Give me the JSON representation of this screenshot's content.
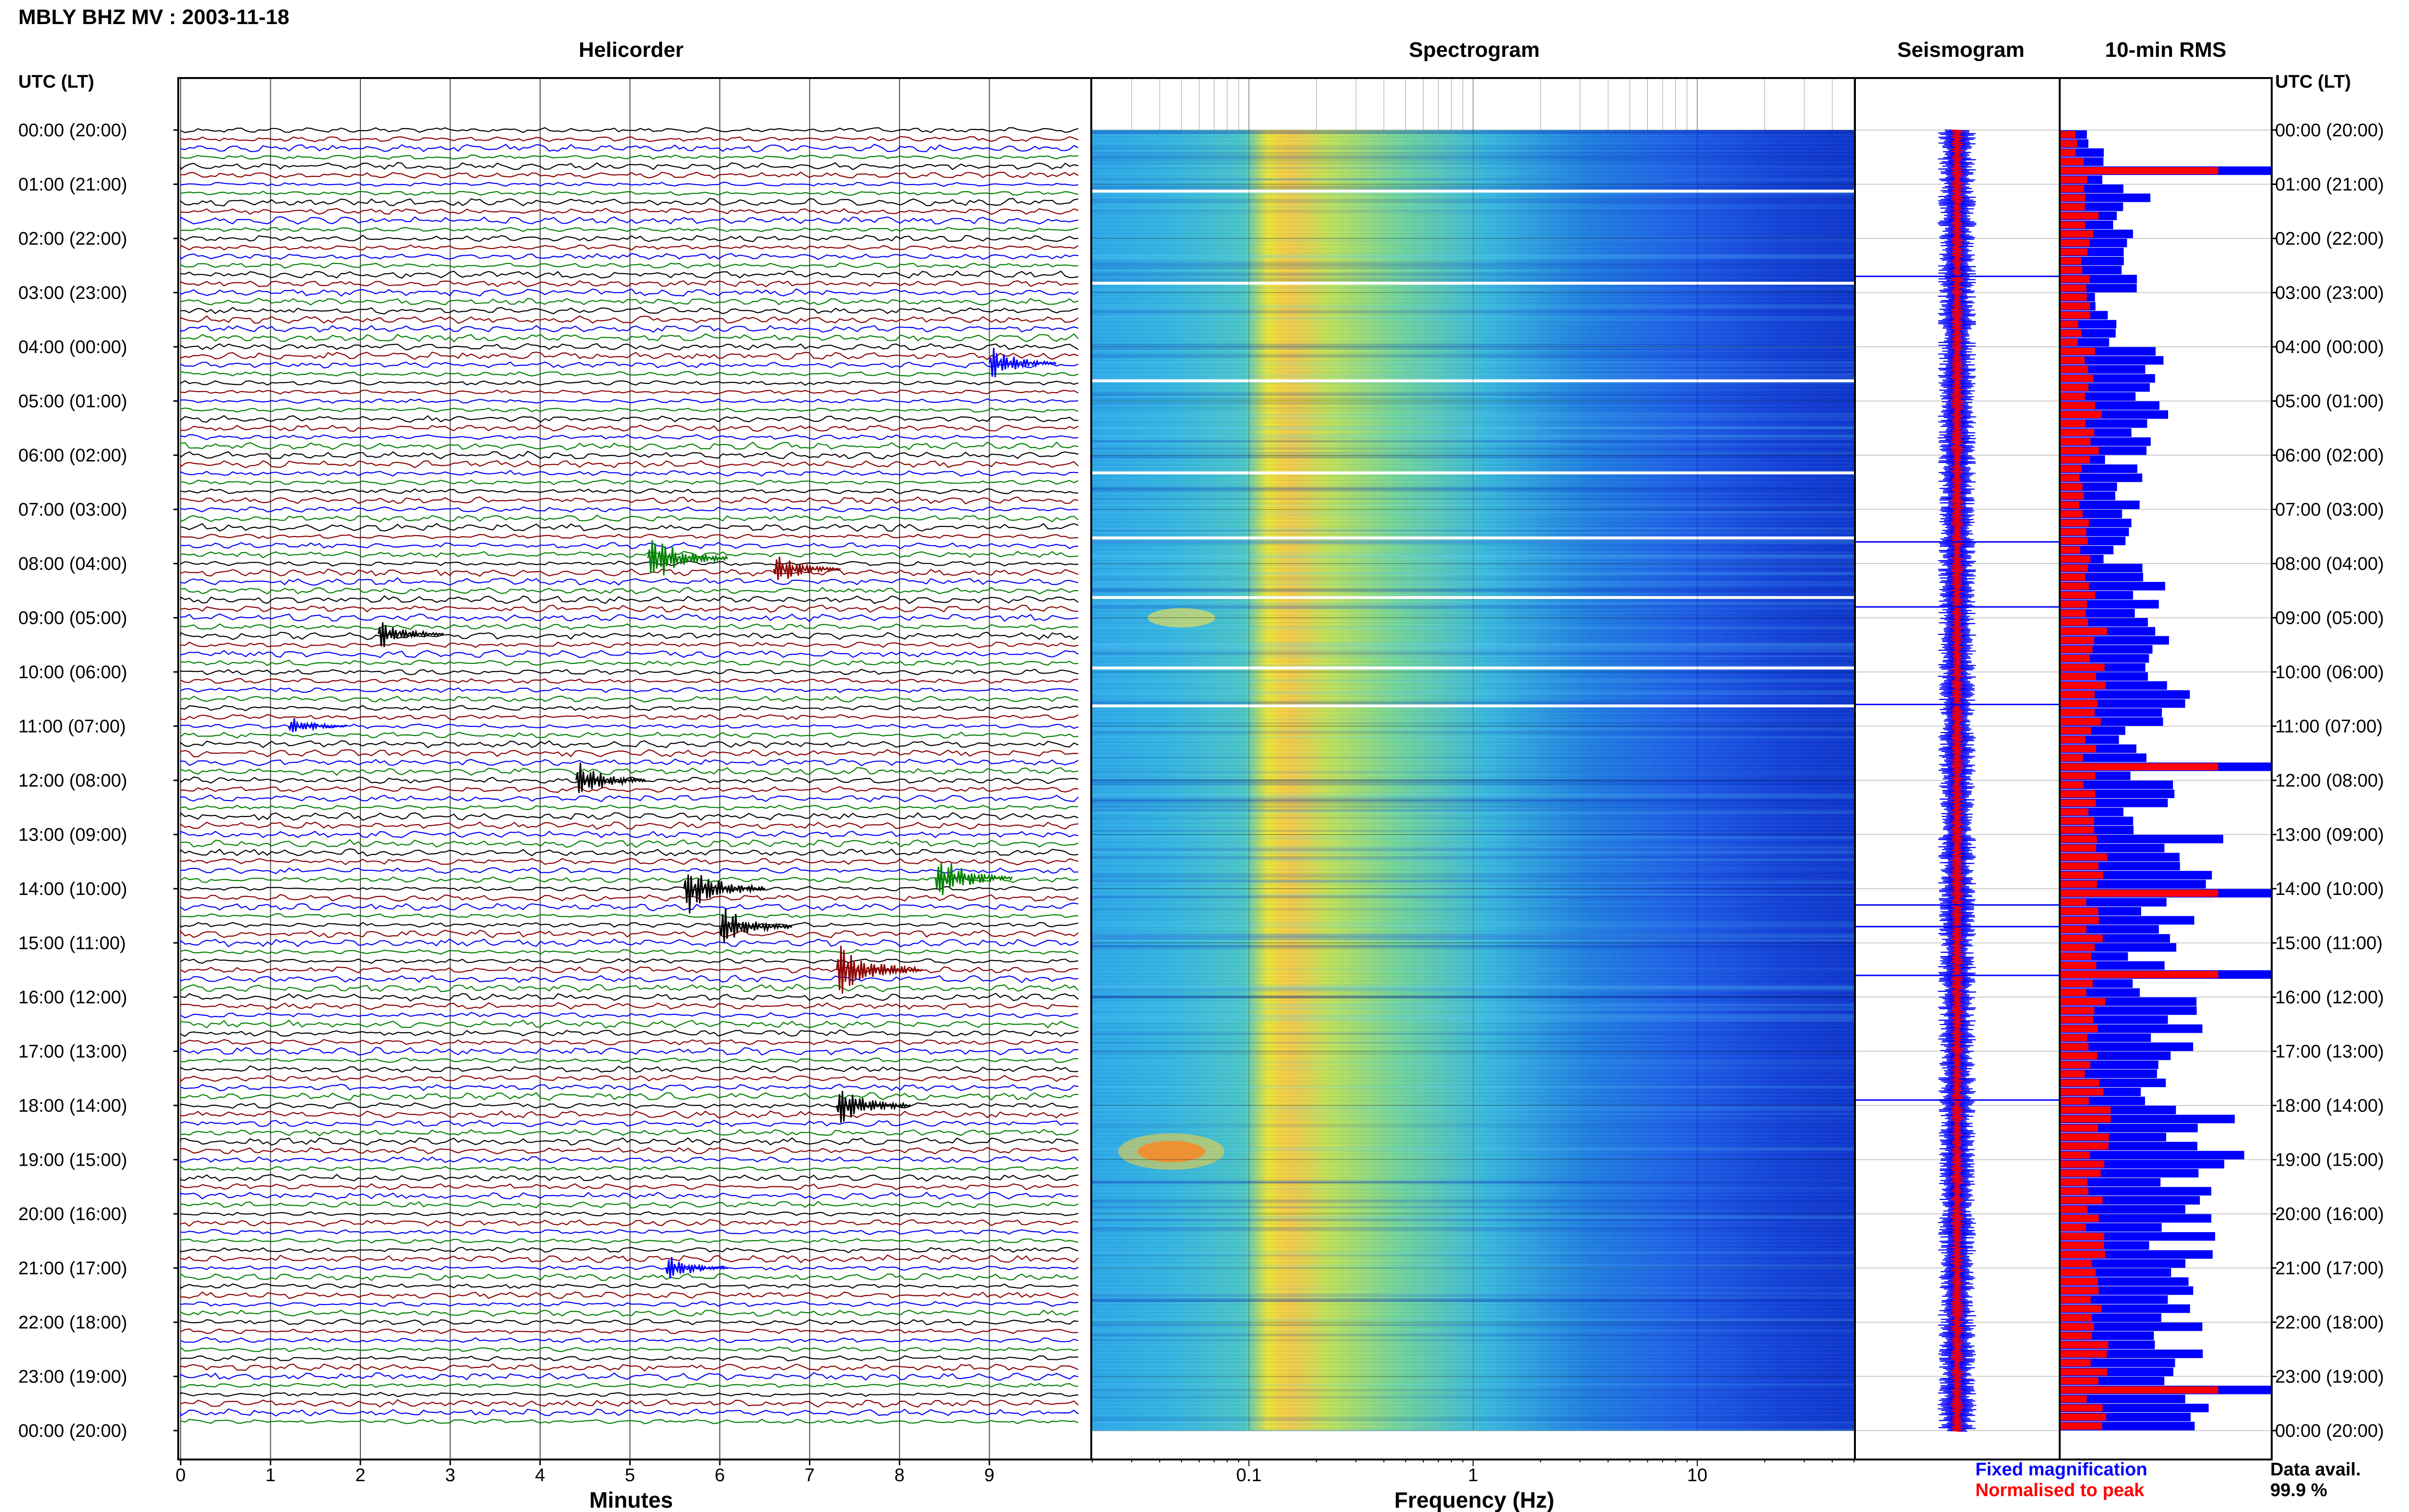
{
  "title": "MBLY BHZ MV : 2003-11-18",
  "axis_header": "UTC (LT)",
  "panels": {
    "helicorder": "Helicorder",
    "spectrogram": "Spectrogram",
    "seismogram": "Seismogram",
    "rms": "10-min RMS"
  },
  "xlabels": {
    "minutes": "Minutes",
    "frequency": "Frequency (Hz)"
  },
  "legend": {
    "fixed": "Fixed magnification",
    "fixed_color": "#0000ff",
    "normalised": "Normalised to peak",
    "normalised_color": "#ff0000"
  },
  "data_avail": {
    "label": "Data avail.",
    "value": "99.9 %"
  },
  "colors": {
    "trace_cycle": [
      "#000000",
      "#8b0000",
      "#0000ff",
      "#008000"
    ],
    "rms_fixed": "#0000ff",
    "rms_norm": "#ff0000"
  },
  "chart_data": [
    {
      "type": "line",
      "panel": "helicorder",
      "xlabel": "Minutes",
      "xlim": [
        0,
        10
      ],
      "xticks": [
        "0",
        "1",
        "2",
        "3",
        "4",
        "5",
        "6",
        "7",
        "8",
        "9"
      ],
      "hour_labels": [
        "00:00 (20:00)",
        "01:00 (21:00)",
        "02:00 (22:00)",
        "03:00 (23:00)",
        "04:00 (00:00)",
        "05:00 (01:00)",
        "06:00 (02:00)",
        "07:00 (03:00)",
        "08:00 (04:00)",
        "09:00 (05:00)",
        "10:00 (06:00)",
        "11:00 (07:00)",
        "12:00 (08:00)",
        "13:00 (09:00)",
        "14:00 (10:00)",
        "15:00 (11:00)",
        "16:00 (12:00)",
        "17:00 (13:00)",
        "18:00 (14:00)",
        "19:00 (15:00)",
        "20:00 (16:00)",
        "21:00 (17:00)",
        "22:00 (18:00)",
        "23:00 (19:00)",
        "00:00 (20:00)"
      ],
      "lines_per_hour": 6,
      "events": [
        {
          "hour": 7.9,
          "minute": 5.2,
          "amp": 3.0
        },
        {
          "hour": 8.1,
          "minute": 6.6,
          "amp": 2.0
        },
        {
          "hour": 9.3,
          "minute": 2.2,
          "amp": 1.8
        },
        {
          "hour": 11.0,
          "minute": 1.2,
          "amp": 1.2
        },
        {
          "hour": 12.0,
          "minute": 4.4,
          "amp": 2.2
        },
        {
          "hour": 13.8,
          "minute": 8.4,
          "amp": 2.8
        },
        {
          "hour": 14.0,
          "minute": 5.6,
          "amp": 3.2
        },
        {
          "hour": 14.7,
          "minute": 6.0,
          "amp": 2.4
        },
        {
          "hour": 15.5,
          "minute": 7.3,
          "amp": 3.5
        },
        {
          "hour": 18.0,
          "minute": 7.3,
          "amp": 2.6
        },
        {
          "hour": 4.3,
          "minute": 9.0,
          "amp": 2.0
        },
        {
          "hour": 21.0,
          "minute": 5.4,
          "amp": 1.6
        }
      ]
    },
    {
      "type": "heatmap",
      "panel": "spectrogram",
      "xlabel": "Frequency (Hz)",
      "xscale": "log",
      "xlim": [
        0.02,
        50
      ],
      "xticks": [
        "0.1",
        "1",
        "10"
      ],
      "ylim_hours": [
        0,
        24
      ]
    },
    {
      "type": "line",
      "panel": "seismogram",
      "ylim_hours": [
        0,
        24
      ],
      "spike_hours": [
        2.7,
        7.6,
        8.8,
        10.6,
        14.3,
        14.7,
        15.6,
        17.9
      ]
    },
    {
      "type": "bar",
      "panel": "10-min RMS",
      "orientation": "horizontal",
      "ylim_hours": [
        0,
        24
      ],
      "bins_per_hour": 6,
      "series": [
        {
          "name": "Fixed magnification",
          "values": [
            0.16,
            0.34,
            0.28,
            0.22,
            0.38,
            0.44,
            0.3,
            0.26,
            0.4,
            0.5,
            0.56,
            0.36,
            0.42,
            0.6,
            0.5,
            0.44,
            0.52,
            0.48,
            0.7,
            0.66,
            0.58,
            0.54,
            0.62,
            0.6
          ]
        },
        {
          "name": "Normalised to peak",
          "values": [
            0.1,
            0.14,
            0.12,
            0.11,
            0.14,
            0.16,
            0.12,
            0.11,
            0.15,
            0.17,
            0.18,
            0.13,
            0.14,
            0.18,
            0.16,
            0.15,
            0.17,
            0.16,
            0.19,
            0.18,
            0.17,
            0.16,
            0.18,
            0.17
          ]
        }
      ]
    }
  ]
}
